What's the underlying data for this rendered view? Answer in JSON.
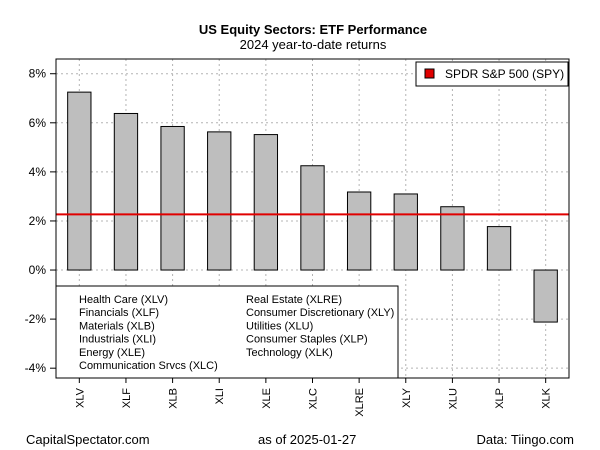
{
  "chart_data": {
    "type": "bar",
    "title": "US Equity Sectors: ETF Performance",
    "subtitle": "2024 year-to-date returns",
    "categories": [
      "XLV",
      "XLF",
      "XLB",
      "XLI",
      "XLE",
      "XLC",
      "XLRE",
      "XLY",
      "XLU",
      "XLP",
      "XLK"
    ],
    "values": [
      7.25,
      6.38,
      5.85,
      5.63,
      5.52,
      4.25,
      3.18,
      3.1,
      2.58,
      1.77,
      -2.12
    ],
    "value_unit": "%",
    "ylim": [
      -4.4,
      8.6
    ],
    "yticks": [
      -4,
      -2,
      0,
      2,
      4,
      6,
      8
    ],
    "ytick_labels": [
      "-4%",
      "-2%",
      "0%",
      "2%",
      "4%",
      "6%",
      "8%"
    ],
    "grid": true,
    "bar_color": "#bebebe",
    "reference_line": {
      "label": "SPDR S&P 500 (SPY)",
      "value": 2.27,
      "color": "#e00000"
    },
    "legend_position": "top-right",
    "annotation_box": {
      "position": "bottom-left",
      "left_column": [
        "Health Care (XLV)",
        "Financials (XLF)",
        "Materials (XLB)",
        "Industrials (XLI)",
        "Energy (XLE)",
        "Communication Srvcs (XLC)"
      ],
      "right_column": [
        "Real Estate (XLRE)",
        "Consumer Discretionary (XLY)",
        "Utilities (XLU)",
        "Consumer Staples (XLP)",
        "Technology (XLK)"
      ]
    }
  },
  "footer": {
    "source_site": "CapitalSpectator.com",
    "as_of": "as of   2025-01-27",
    "data_credit": "Data: Tiingo.com"
  }
}
